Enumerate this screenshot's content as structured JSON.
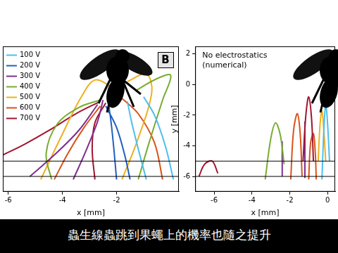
{
  "chart_data": [
    {
      "type": "line",
      "panel_label": "B",
      "xlabel": "x [mm]",
      "xlim": [
        -6.2,
        0.3
      ],
      "xticks": [
        -6,
        -4,
        -2
      ],
      "ylim": [
        -7,
        2.5
      ],
      "tick_labels": "x",
      "grid": false,
      "legend": "upper left",
      "hlines": [
        -5,
        -6
      ],
      "series": [
        {
          "name": "100 V",
          "color": "#4dbeee",
          "x": [
            -0.9,
            -1.2,
            -1.45,
            -1.6,
            null,
            0.1,
            -0.2,
            -0.6,
            -1.0
          ],
          "y": [
            -6.2,
            -4.2,
            -2.4,
            -1.1,
            null,
            -6.2,
            -4.0,
            -2.0,
            -0.8
          ]
        },
        {
          "name": "200 V",
          "color": "#2060c0",
          "x": [
            -2.0,
            -2.1,
            -2.2,
            -2.3,
            null,
            -1.5,
            -1.7,
            -2.0,
            -2.4
          ],
          "y": [
            -6.2,
            -4.2,
            -2.5,
            -1.2,
            null,
            -6.2,
            -4.6,
            -2.8,
            -1.4
          ]
        },
        {
          "name": "300 V",
          "color": "#7e2f8e",
          "x": [
            -3.6,
            -3.1,
            -2.7,
            -2.5,
            null,
            -5.2,
            -4.3,
            -3.4,
            -2.7
          ],
          "y": [
            -6.2,
            -4.2,
            -2.4,
            -1.0,
            null,
            -6.0,
            -4.6,
            -3.0,
            -1.3
          ]
        },
        {
          "name": "400 V",
          "color": "#77ac30",
          "x": [
            -1.2,
            -0.8,
            -0.3,
            0.0,
            -0.5,
            -1.3,
            null,
            -4.4,
            -4.6,
            -4.2,
            -3.4,
            -2.6
          ],
          "y": [
            -6.2,
            -3.8,
            -1.0,
            0.6,
            0.4,
            -0.4,
            null,
            -6.2,
            -4.5,
            -2.6,
            -1.5,
            -1.0
          ]
        },
        {
          "name": "500 V",
          "color": "#edb120",
          "x": [
            -4.8,
            -4.1,
            -3.3,
            -2.8,
            -2.2,
            -2.0,
            null,
            -1.8,
            -1.2,
            -0.7,
            -0.9,
            -1.6
          ],
          "y": [
            -6.2,
            -3.6,
            -0.8,
            0.3,
            -0.2,
            -0.9,
            null,
            -6.2,
            -3.5,
            -0.5,
            0.7,
            0.2
          ]
        },
        {
          "name": "600 V",
          "color": "#d95319",
          "x": [
            -4.3,
            -3.8,
            -3.2,
            -2.6,
            null,
            -0.3,
            -0.6,
            -1.2,
            -1.8
          ],
          "y": [
            -6.2,
            -4.5,
            -2.8,
            -1.4,
            null,
            -6.2,
            -3.8,
            -1.9,
            -0.9
          ]
        },
        {
          "name": "700 V",
          "color": "#a2142f",
          "x": [
            -6.2,
            -5.4,
            -4.5,
            -3.5,
            -2.6,
            null,
            -2.8,
            -2.9,
            -2.8,
            -2.4
          ],
          "y": [
            -4.6,
            -3.9,
            -3.0,
            -1.9,
            -1.1,
            null,
            -6.2,
            -4.2,
            -2.5,
            -1.2
          ]
        }
      ]
    },
    {
      "type": "line",
      "annotation": [
        "No electrostatics",
        "(numerical)"
      ],
      "xlabel": "x [mm]",
      "ylabel": "y [mm]",
      "xlim": [
        -7,
        0.4
      ],
      "xticks": [
        -6,
        -4,
        -2,
        0
      ],
      "ylim": [
        -7,
        2.5
      ],
      "yticks": [
        -6,
        -4,
        -2,
        0,
        2
      ],
      "grid": false,
      "hlines": [
        -5,
        -6
      ],
      "series": [
        {
          "color": "#4dbeee",
          "x": [
            -0.3,
            -0.2,
            -0.1,
            0.0,
            0.1
          ],
          "y": [
            -6.2,
            -3.0,
            -1.3,
            -2.6,
            -5.0
          ]
        },
        {
          "color": "#a2142f",
          "x": [
            -1.3,
            -1.15,
            -1.0,
            -0.85,
            -0.75,
            null,
            -6.8,
            -6.5,
            -6.1,
            -5.8
          ],
          "y": [
            -5.0,
            -2.0,
            -0.8,
            -2.2,
            -5.0,
            null,
            -6.0,
            -5.2,
            -5.0,
            -5.8
          ]
        },
        {
          "color": "#77ac30",
          "x": [
            -3.3,
            -3.0,
            -2.75,
            -2.5,
            -2.3
          ],
          "y": [
            -6.2,
            -3.5,
            -2.5,
            -3.3,
            -5.2
          ]
        },
        {
          "color": "#7e2f8e",
          "x": [
            -2.4,
            -2.4,
            null,
            -1.2,
            -1.2
          ],
          "y": [
            -6.0,
            -3.7,
            null,
            -6.1,
            -2.4
          ]
        },
        {
          "color": "#d95319",
          "x": [
            -1.95,
            -1.8,
            -1.6,
            -1.45,
            -1.35,
            null,
            -1.0,
            -0.9,
            -0.75,
            -0.65,
            -0.6
          ],
          "y": [
            -6.2,
            -3.0,
            -1.9,
            -3.2,
            -6.0,
            null,
            -6.2,
            -3.8,
            -3.2,
            -4.5,
            -6.2
          ]
        },
        {
          "color": "#edb120",
          "x": [
            -0.5,
            -0.4,
            -0.3,
            -0.2,
            -0.1
          ],
          "y": [
            -5.0,
            -2.6,
            -1.7,
            -3.0,
            -5.0
          ]
        }
      ]
    }
  ],
  "caption": "蟲生線蟲跳到果蠅上的機率也隨之提升"
}
